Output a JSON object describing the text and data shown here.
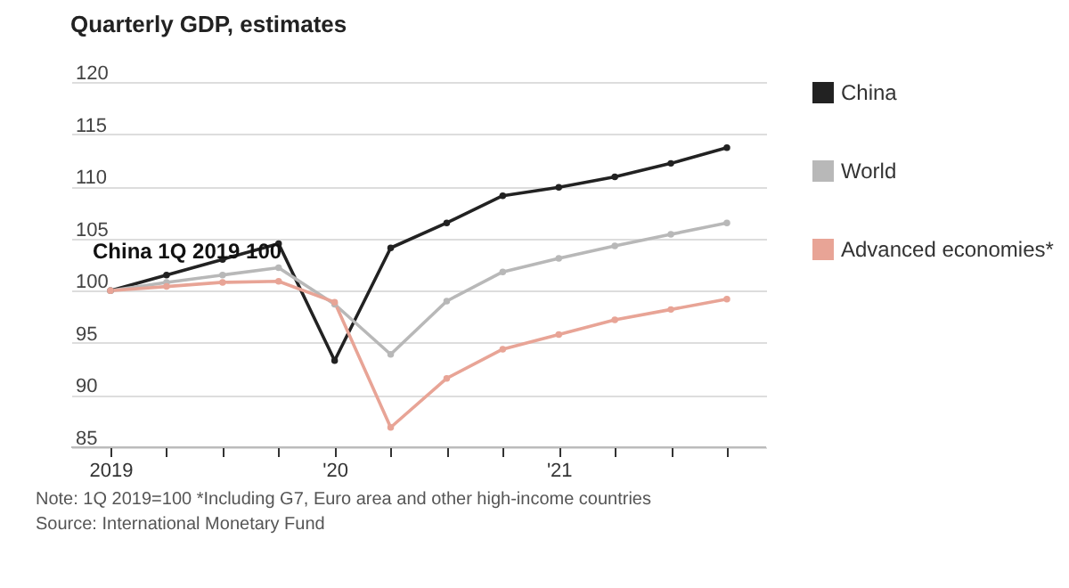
{
  "chart_data": {
    "type": "line",
    "title": "Quarterly GDP, estimates",
    "categories": [
      "2019",
      null,
      null,
      null,
      "'20",
      null,
      null,
      null,
      "'21",
      null,
      null,
      null
    ],
    "series": [
      {
        "name": "China",
        "color": "#222222",
        "values": [
          100,
          101.5,
          103,
          104.5,
          93.3,
          104.1,
          106.5,
          109.1,
          109.9,
          110.9,
          112.2,
          113.7
        ]
      },
      {
        "name": "World",
        "color": "#b8b8b8",
        "values": [
          100,
          100.8,
          101.5,
          102.2,
          98.7,
          93.9,
          99.0,
          101.8,
          103.1,
          104.3,
          105.4,
          106.5
        ]
      },
      {
        "name": "Advanced economies*",
        "color": "#e8a496",
        "values": [
          100,
          100.4,
          100.8,
          100.9,
          98.9,
          86.9,
          91.6,
          94.4,
          95.8,
          97.2,
          98.2,
          99.2
        ]
      }
    ],
    "ylim": [
      85,
      120
    ],
    "yticks": [
      85,
      90,
      95,
      100,
      105,
      110,
      115,
      120
    ],
    "grid": "y",
    "legend": "right",
    "marker": "circle",
    "line_style": "solid",
    "annotations": [
      {
        "text": "China  1Q 2019  100",
        "x": "2019",
        "y": 100
      },
      "Note: 1Q 2019=100 *Including G7, Euro area and other high-income countries",
      "Source: International Monetary Fund"
    ]
  }
}
